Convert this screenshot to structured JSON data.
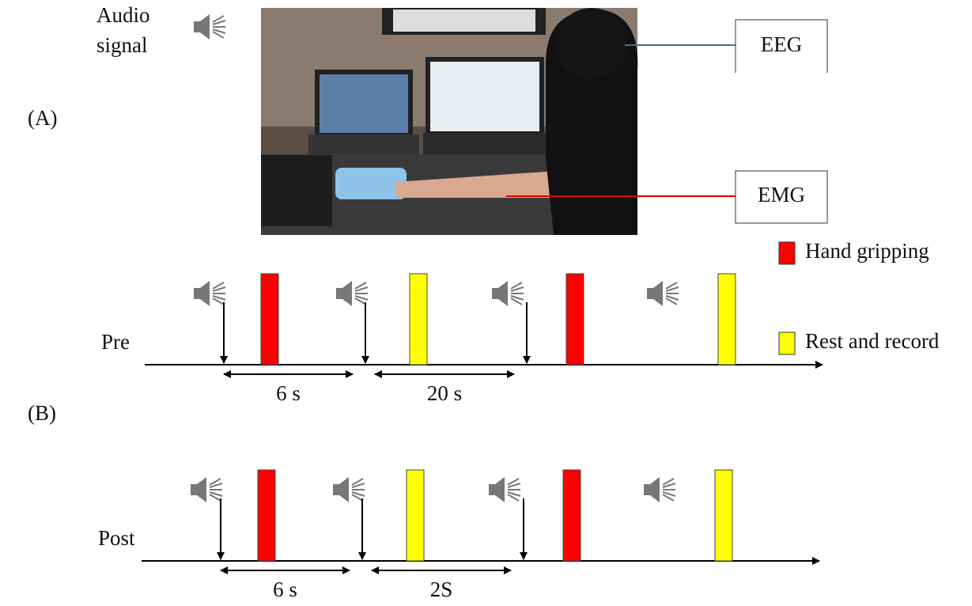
{
  "panel_a": {
    "label": "(A)",
    "audio_label": [
      "Audio",
      "signal"
    ],
    "eeg_label": "EEG",
    "emg_label": "EMG"
  },
  "legend": [
    {
      "label": "Hand gripping",
      "color": "#ff0000"
    },
    {
      "label": "Rest and record",
      "color": "#ffff00"
    }
  ],
  "panel_b": {
    "label": "(B)",
    "timelines": [
      {
        "label": "Pre",
        "intervals": [
          "6 s",
          "20 s"
        ]
      },
      {
        "label": "Post",
        "intervals": [
          "6 s",
          "2S"
        ]
      }
    ]
  }
}
